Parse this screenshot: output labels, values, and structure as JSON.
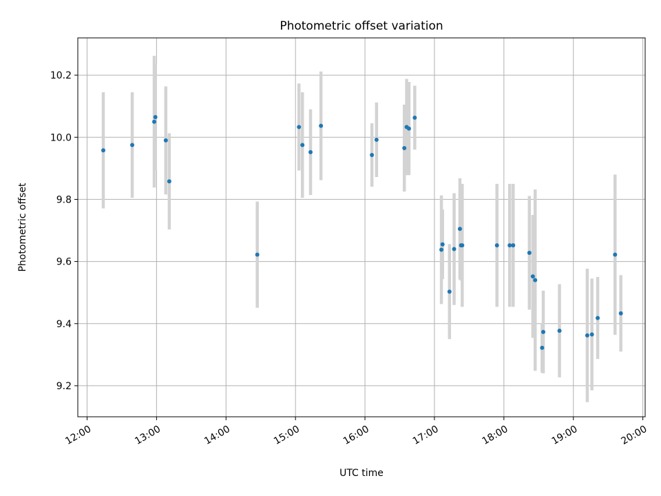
{
  "chart_data": {
    "type": "scatter",
    "title": "Photometric offset variation",
    "xlabel": "UTC time",
    "ylabel": "Photometric offset",
    "xlim": [
      "11:52",
      "20:02"
    ],
    "ylim": [
      9.1,
      10.32
    ],
    "x_ticks": [
      "12:00",
      "13:00",
      "14:00",
      "15:00",
      "16:00",
      "17:00",
      "18:00",
      "19:00",
      "20:00"
    ],
    "y_ticks": [
      9.2,
      9.4,
      9.6,
      9.8,
      10.0,
      10.2
    ],
    "grid": true,
    "point_color": "#1f77b4",
    "errorbar_color": "#d3d3d3",
    "points": [
      {
        "x": "12:14",
        "y": 9.958,
        "err": 0.187
      },
      {
        "x": "12:39",
        "y": 9.975,
        "err": 0.17
      },
      {
        "x": "12:58",
        "y": 10.05,
        "err": 0.212
      },
      {
        "x": "12:59",
        "y": 10.065,
        "err": 0.17
      },
      {
        "x": "13:08",
        "y": 9.99,
        "err": 0.174
      },
      {
        "x": "13:11",
        "y": 9.858,
        "err": 0.155
      },
      {
        "x": "14:27",
        "y": 9.622,
        "err": 0.171
      },
      {
        "x": "15:03",
        "y": 10.033,
        "err": 0.14
      },
      {
        "x": "15:06",
        "y": 9.975,
        "err": 0.17
      },
      {
        "x": "15:13",
        "y": 9.952,
        "err": 0.138
      },
      {
        "x": "15:22",
        "y": 10.037,
        "err": 0.175
      },
      {
        "x": "16:06",
        "y": 9.943,
        "err": 0.102
      },
      {
        "x": "16:10",
        "y": 9.992,
        "err": 0.12
      },
      {
        "x": "16:34",
        "y": 9.965,
        "err": 0.14
      },
      {
        "x": "16:36",
        "y": 10.033,
        "err": 0.155
      },
      {
        "x": "16:38",
        "y": 10.028,
        "err": 0.15
      },
      {
        "x": "16:43",
        "y": 10.063,
        "err": 0.103
      },
      {
        "x": "17:06",
        "y": 9.638,
        "err": 0.175
      },
      {
        "x": "17:07",
        "y": 9.655,
        "err": 0.112
      },
      {
        "x": "17:13",
        "y": 9.503,
        "err": 0.153
      },
      {
        "x": "17:17",
        "y": 9.64,
        "err": 0.18
      },
      {
        "x": "17:22",
        "y": 9.705,
        "err": 0.163
      },
      {
        "x": "17:23",
        "y": 9.652,
        "err": 0.113
      },
      {
        "x": "17:24",
        "y": 9.652,
        "err": 0.198
      },
      {
        "x": "17:54",
        "y": 9.652,
        "err": 0.198
      },
      {
        "x": "18:05",
        "y": 9.652,
        "err": 0.198
      },
      {
        "x": "18:08",
        "y": 9.652,
        "err": 0.198
      },
      {
        "x": "18:22",
        "y": 9.628,
        "err": 0.183
      },
      {
        "x": "18:25",
        "y": 9.552,
        "err": 0.198
      },
      {
        "x": "18:27",
        "y": 9.54,
        "err": 0.292
      },
      {
        "x": "18:33",
        "y": 9.322,
        "err": 0.08
      },
      {
        "x": "18:34",
        "y": 9.373,
        "err": 0.133
      },
      {
        "x": "18:48",
        "y": 9.377,
        "err": 0.15
      },
      {
        "x": "19:12",
        "y": 9.362,
        "err": 0.215
      },
      {
        "x": "19:16",
        "y": 9.365,
        "err": 0.18
      },
      {
        "x": "19:21",
        "y": 9.418,
        "err": 0.132
      },
      {
        "x": "19:36",
        "y": 9.622,
        "err": 0.258
      },
      {
        "x": "19:41",
        "y": 9.433,
        "err": 0.123
      }
    ]
  }
}
